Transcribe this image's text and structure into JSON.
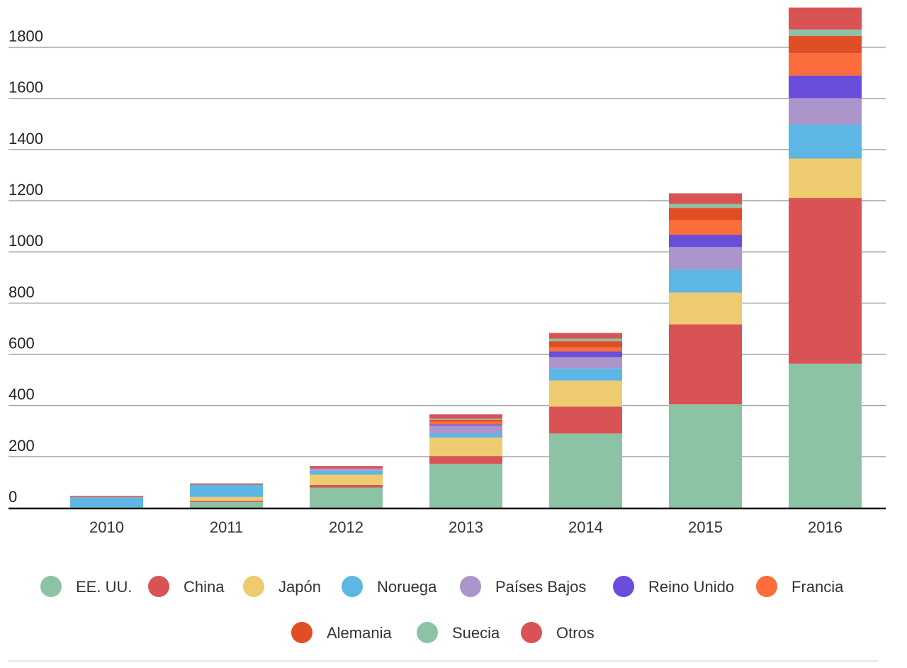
{
  "chart_data": {
    "type": "bar",
    "stacked": true,
    "categories": [
      "2010",
      "2011",
      "2012",
      "2013",
      "2014",
      "2015",
      "2016"
    ],
    "ylim": [
      0,
      1950
    ],
    "yticks": [
      0,
      200,
      400,
      600,
      800,
      1000,
      1200,
      1400,
      1600,
      1800
    ],
    "ytick_labels": [
      "0",
      "200",
      "400",
      "600",
      "800",
      "1000",
      "1200",
      "1400",
      "1600",
      "1800"
    ],
    "grid": true,
    "legend_position": "bottom",
    "series": [
      {
        "name": "EE. UU.",
        "color": "#8cc3a4",
        "values": [
          2,
          22,
          79,
          172,
          290,
          404,
          563
        ]
      },
      {
        "name": "China",
        "color": "#d95355",
        "values": [
          0,
          5,
          10,
          30,
          105,
          313,
          648
        ]
      },
      {
        "name": "Japón",
        "color": "#efcb6f",
        "values": [
          0,
          15,
          40,
          72,
          102,
          124,
          154
        ]
      },
      {
        "name": "Noruega",
        "color": "#5db6e3",
        "values": [
          39,
          48,
          16,
          17,
          48,
          90,
          133
        ]
      },
      {
        "name": "Países Bajos",
        "color": "#ab95cb",
        "values": [
          0,
          0,
          8,
          30,
          44,
          88,
          103
        ]
      },
      {
        "name": "Reino Unido",
        "color": "#6a4ddb",
        "values": [
          0,
          0,
          0,
          5,
          22,
          48,
          88
        ]
      },
      {
        "name": "Francia",
        "color": "#fb6d3b",
        "values": [
          0,
          0,
          0,
          10,
          15,
          57,
          87
        ]
      },
      {
        "name": "Alemania",
        "color": "#e04e25",
        "values": [
          0,
          0,
          0,
          8,
          25,
          48,
          68
        ]
      },
      {
        "name": "Suecia",
        "color": "#8cc3a4",
        "values": [
          0,
          0,
          0,
          4,
          10,
          15,
          25
        ]
      },
      {
        "name": "Otros",
        "color": "#d95355",
        "values": [
          5,
          5,
          10,
          17,
          22,
          42,
          86
        ]
      }
    ]
  }
}
